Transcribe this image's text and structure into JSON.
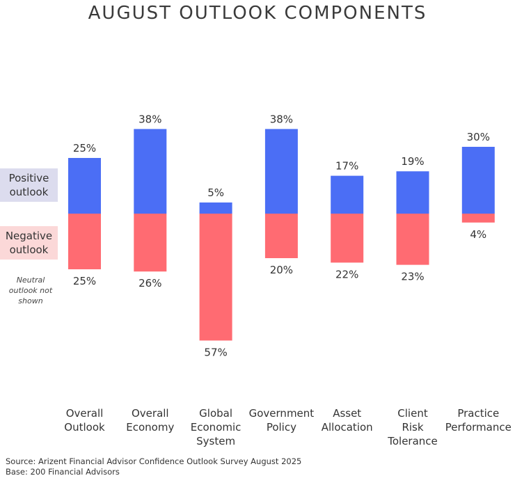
{
  "title": "AUGUST OUTLOOK COMPONENTS",
  "legend": {
    "positive": {
      "label_line1": "Positive",
      "label_line2": "outlook",
      "color": "#dcdcee"
    },
    "negative": {
      "label_line1": "Negative",
      "label_line2": "outlook",
      "color": "#fbd8d8"
    },
    "neutral_note_line1": "Neutral",
    "neutral_note_line2": "outlook not",
    "neutral_note_line3": "shown"
  },
  "footer": {
    "source": "Source: Arizent Financial Advisor Confidence Outlook Survey August 2025",
    "base": "Base: 200 Financial Advisors"
  },
  "chart_data": {
    "type": "bar",
    "categories": [
      [
        "Overall",
        "Outlook"
      ],
      [
        "Overall",
        "Economy"
      ],
      [
        "Global",
        "Economic",
        "System"
      ],
      [
        "Government",
        "Policy"
      ],
      [
        "Asset",
        "Allocation"
      ],
      [
        "Client",
        "Risk",
        "Tolerance"
      ],
      [
        "Practice",
        "Performance"
      ]
    ],
    "series": [
      {
        "name": "Positive outlook",
        "values": [
          25,
          38,
          5,
          38,
          17,
          19,
          30
        ],
        "labels": [
          "25%",
          "38%",
          "5%",
          "38%",
          "17%",
          "19%",
          "30%"
        ],
        "color": "#4b6ef5"
      },
      {
        "name": "Negative outlook",
        "values": [
          25,
          26,
          57,
          20,
          22,
          23,
          4
        ],
        "labels": [
          "25%",
          "26%",
          "57%",
          "20%",
          "22%",
          "23%",
          "4%"
        ],
        "color": "#ff6b72"
      }
    ],
    "diverging": true,
    "title": "AUGUST OUTLOOK COMPONENTS",
    "xlabel": "",
    "ylabel": ""
  }
}
